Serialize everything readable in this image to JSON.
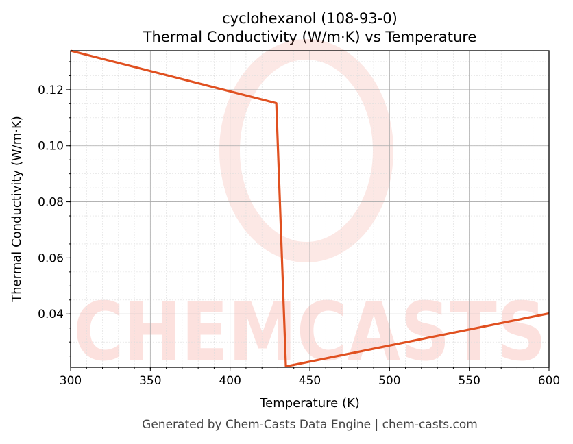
{
  "chart_data": {
    "type": "line",
    "title": "cyclohexanol (108-93-0)",
    "subtitle": "Thermal Conductivity (W/m·K) vs Temperature",
    "xlabel": "Temperature (K)",
    "ylabel": "Thermal Conductivity (W/m·K)",
    "xlim": [
      300,
      600
    ],
    "ylim": [
      0.021,
      0.1339
    ],
    "xticks": [
      300,
      350,
      400,
      450,
      500,
      550,
      600
    ],
    "yticks": [
      0.04,
      0.06,
      0.08,
      0.1,
      0.12
    ],
    "ytick_labels": [
      "0.04",
      "0.06",
      "0.08",
      "0.10",
      "0.12"
    ],
    "grid": true,
    "series": [
      {
        "x": [
          300,
          429,
          435,
          600
        ],
        "y": [
          0.1339,
          0.1152,
          0.0213,
          0.0402
        ],
        "color": "#e05020"
      }
    ],
    "watermark": "CHEMCASTS",
    "footer": "Generated by Chem-Casts Data Engine | chem-casts.com"
  }
}
